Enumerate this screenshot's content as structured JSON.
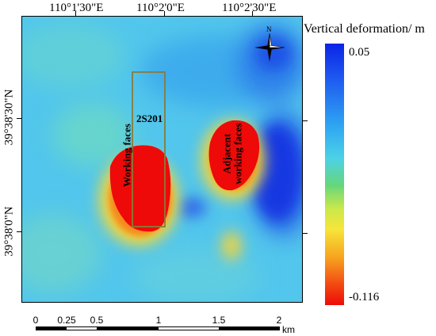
{
  "map": {
    "lon_labels": [
      "110°1'30\"E",
      "110°2'0\"E",
      "110°2'30\"E"
    ],
    "lat_labels": [
      "39°38'30\"N",
      "39°38'0\"N"
    ],
    "annotations": {
      "panel_name": "2S201",
      "working_faces": "Working faces",
      "adjacent_line1": "Adjacent",
      "adjacent_line2": "working faces"
    },
    "north_label": "N",
    "colors": {
      "background_cyan": "#52c6ec",
      "subsidence_red": "#ee0a08",
      "uplift_blue": "#1a3ce6",
      "panel_outline": "#8b7a3a"
    }
  },
  "legend": {
    "title": "Vertical deformation/ m",
    "max": "0.05",
    "min": "-0.116"
  },
  "scale_bar": {
    "labels": [
      "0",
      "0.25",
      "0.5",
      "1",
      "1.5",
      "2"
    ],
    "unit": "km"
  }
}
